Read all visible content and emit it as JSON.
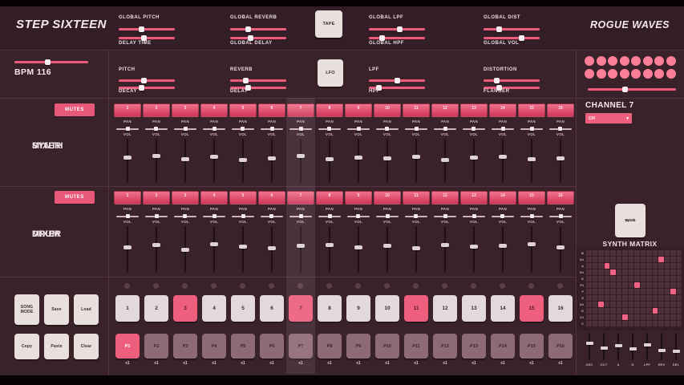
{
  "header": {
    "app_title": "STEP SIXTEEN",
    "brand": "ROGUE WAVES",
    "tape_label": "TAPE",
    "groups": [
      {
        "top_label": "GLOBAL PITCH",
        "top_value": 40,
        "bottom_label": "DELAY TIME",
        "bottom_value": 45
      },
      {
        "top_label": "GLOBAL REVERB",
        "top_value": 30,
        "bottom_label": "GLOBAL DELAY",
        "bottom_value": 35
      },
      {
        "top_label": "GLOBAL LPF",
        "top_value": 55,
        "bottom_label": "GLOBAL HPF",
        "bottom_value": 20
      },
      {
        "top_label": "GLOBAL DIST",
        "top_value": 25,
        "bottom_label": "GLOBAL VOL",
        "bottom_value": 70
      }
    ]
  },
  "transport": {
    "bpm_label": "BPM 116",
    "bpm_value": 45
  },
  "channel_controls": {
    "lfo_label": "LFO",
    "groups": [
      {
        "top_label": "PITCH",
        "top_value": 45,
        "bottom_label": "DECAY",
        "bottom_value": 40
      },
      {
        "top_label": "REVERB",
        "top_value": 25,
        "bottom_label": "DELAY",
        "bottom_value": 30
      },
      {
        "top_label": "LPF",
        "top_value": 50,
        "bottom_label": "HPF",
        "bottom_value": 15
      },
      {
        "top_label": "DISTORTION",
        "top_value": 20,
        "bottom_label": "FLANGER",
        "bottom_value": 25
      }
    ]
  },
  "channel_panel": {
    "title": "CHANNEL 7",
    "selector_value": "CH",
    "selector_caret": "▾",
    "led_count": 16,
    "level_value": 42
  },
  "synth_mixer": {
    "title_line1": "SYNTH",
    "title_line2": "MIXER",
    "mutes_label": "MUTES",
    "pan_label": "PAN",
    "vol_label": "VOL",
    "channel_numbers": [
      "1",
      "2",
      "3",
      "4",
      "5",
      "6",
      "7",
      "8",
      "9",
      "10",
      "11",
      "12",
      "13",
      "14",
      "15",
      "16"
    ],
    "pan_values": [
      50,
      48,
      52,
      50,
      46,
      54,
      50,
      49,
      51,
      47,
      53,
      50,
      48,
      52,
      50,
      49
    ],
    "vol_values": [
      58,
      62,
      55,
      60,
      52,
      57,
      63,
      54,
      59,
      56,
      61,
      53,
      58,
      60,
      55,
      57
    ]
  },
  "drum_mixer": {
    "title_line1": "DRUM",
    "title_line2": "MIXER",
    "mutes_label": "MUTES",
    "pan_label": "PAN",
    "vol_label": "VOL",
    "channel_numbers": [
      "1",
      "2",
      "3",
      "4",
      "5",
      "6",
      "7",
      "8",
      "9",
      "10",
      "11",
      "12",
      "13",
      "14",
      "15",
      "16"
    ],
    "pan_values": [
      52,
      50,
      47,
      53,
      50,
      48,
      50,
      51,
      49,
      50,
      46,
      54,
      50,
      49,
      52,
      50
    ],
    "vol_values": [
      55,
      60,
      50,
      62,
      57,
      53,
      59,
      61,
      54,
      58,
      52,
      60,
      56,
      59,
      62,
      54
    ]
  },
  "sequencer": {
    "active_column": 7,
    "steps": [
      "1",
      "2",
      "3",
      "4",
      "5",
      "6",
      "7",
      "8",
      "9",
      "10",
      "11",
      "12",
      "13",
      "14",
      "15",
      "16"
    ],
    "accent_steps": [
      3,
      7,
      11,
      15
    ],
    "patterns": [
      "P1",
      "P2",
      "P3",
      "P4",
      "P5",
      "P6",
      "P7",
      "P8",
      "P9",
      "P10",
      "P11",
      "P12",
      "P13",
      "P14",
      "P15",
      "P16"
    ],
    "selected_pattern": 1,
    "repeat_labels": [
      "x1",
      "x1",
      "x1",
      "x1",
      "x1",
      "x1",
      "x1",
      "x1",
      "x1",
      "x1",
      "x1",
      "x1",
      "x1",
      "x1",
      "x1",
      "x1"
    ]
  },
  "song_controls": {
    "buttons": [
      "SONG MODE",
      "Save",
      "Load",
      "Copy",
      "Paste",
      "Clear"
    ]
  },
  "matrix": {
    "mode_button_line1": "Drum",
    "mode_button_line2": "/",
    "mode_button_line3": "Synth",
    "title": "SYNTH MATRIX",
    "note_labels": [
      "B",
      "A#",
      "A",
      "G#",
      "G",
      "F#",
      "F",
      "E",
      "D#",
      "D",
      "C#",
      "C"
    ],
    "columns": 16,
    "active_cells": [
      [
        1,
        12
      ],
      [
        2,
        3
      ],
      [
        3,
        4
      ],
      [
        5,
        8
      ],
      [
        6,
        14
      ],
      [
        8,
        2
      ],
      [
        9,
        11
      ],
      [
        10,
        6
      ]
    ],
    "slider_labels": [
      "OSC",
      "OCT",
      "A",
      "D",
      "LPF",
      "REV",
      "DEL"
    ],
    "slider_values": [
      62,
      45,
      55,
      40,
      58,
      35,
      30
    ]
  },
  "colors": {
    "accent": "#ee5f7e",
    "accent_bright": "#fc7f97",
    "background": "#3a222b",
    "button_cream": "#e9dfdc"
  }
}
